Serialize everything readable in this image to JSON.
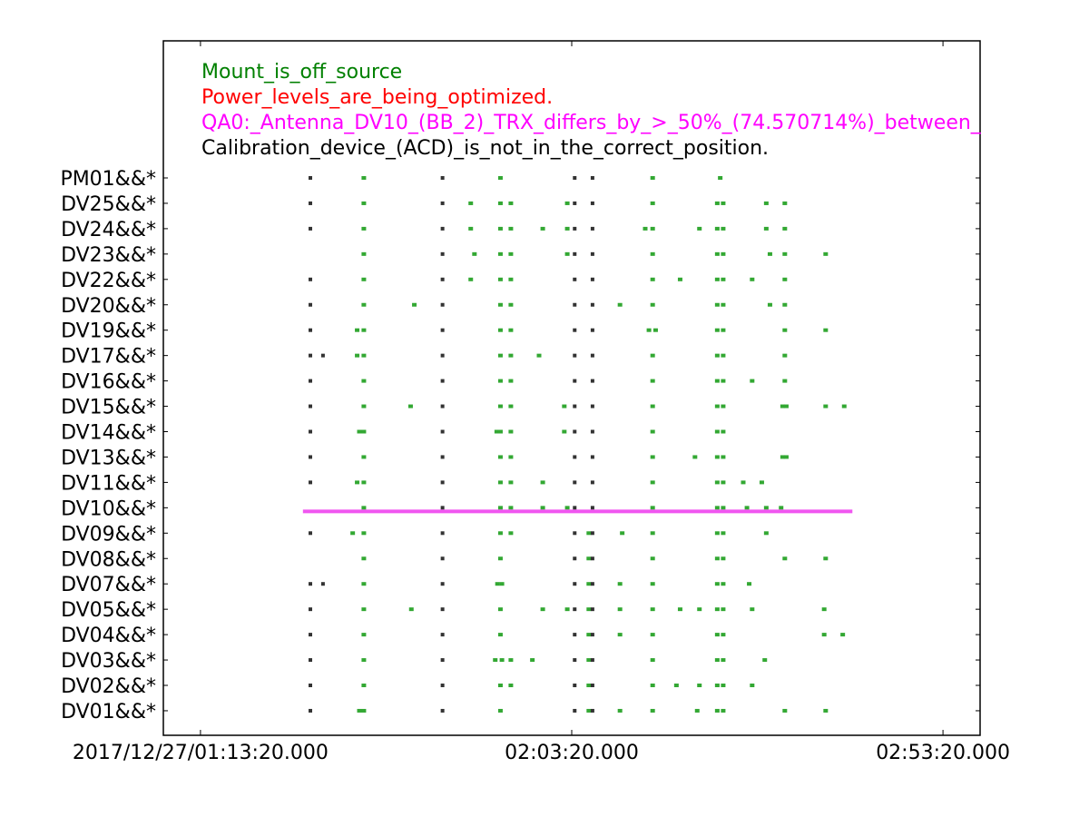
{
  "chart_data": {
    "type": "scatter",
    "title": "",
    "xlabel": "",
    "ylabel": "",
    "x_ticks": [
      "2017/12/27/01:13:20.000",
      "02:03:20.000",
      "02:53:20.000"
    ],
    "x_tick_minutes": [
      0,
      50,
      100
    ],
    "x_range_minutes": [
      -5,
      105
    ],
    "legend": [
      {
        "text": "Mount_is_off_source",
        "color": "#008000"
      },
      {
        "text": "Power_levels_are_being_optimized.",
        "color": "#ff0000"
      },
      {
        "text": "QA0:_Antenna_DV10_(BB_2)_TRX_differs_by_>_50%_(74.570714%)_between_",
        "color": "#ff00ff"
      },
      {
        "text": "Calibration_device_(ACD)_is_not_in_the_correct_position.",
        "color": "#000000"
      }
    ],
    "antennas": [
      "PM01&&*",
      "DV25&&*",
      "DV24&&*",
      "DV23&&*",
      "DV22&&*",
      "DV20&&*",
      "DV19&&*",
      "DV17&&*",
      "DV16&&*",
      "DV15&&*",
      "DV14&&*",
      "DV13&&*",
      "DV11&&*",
      "DV10&&*",
      "DV09&&*",
      "DV08&&*",
      "DV07&&*",
      "DV05&&*",
      "DV04&&*",
      "DV03&&*",
      "DV02&&*",
      "DV01&&*"
    ],
    "black_flags_minutes": {
      "PM01&&*": [
        14.8,
        32.6,
        50.4,
        52.8
      ],
      "DV25&&*": [
        14.8,
        32.6,
        50.4,
        52.8
      ],
      "DV24&&*": [
        14.8,
        32.6,
        50.4,
        52.8
      ],
      "DV23&&*": [
        32.6,
        50.4,
        52.8
      ],
      "DV22&&*": [
        14.8,
        32.6,
        50.4,
        52.8
      ],
      "DV20&&*": [
        14.8,
        32.6,
        50.4,
        52.8
      ],
      "DV19&&*": [
        14.8,
        32.6,
        50.4,
        52.8
      ],
      "DV17&&*": [
        14.8,
        16.5,
        32.6,
        50.4,
        52.8
      ],
      "DV16&&*": [
        14.8,
        32.6,
        50.4,
        52.8
      ],
      "DV15&&*": [
        14.8,
        32.6,
        50.4,
        52.8
      ],
      "DV14&&*": [
        14.8,
        32.6,
        50.4,
        52.8
      ],
      "DV13&&*": [
        14.8,
        32.6,
        50.4,
        52.8
      ],
      "DV11&&*": [
        14.8,
        32.6,
        50.4,
        52.8
      ],
      "DV10&&*": [
        32.6,
        50.4,
        52.8
      ],
      "DV09&&*": [
        14.8,
        32.6,
        50.4,
        52.8
      ],
      "DV08&&*": [
        32.6,
        50.4,
        52.8
      ],
      "DV07&&*": [
        14.8,
        16.5,
        32.6,
        50.4,
        52.8
      ],
      "DV05&&*": [
        14.8,
        32.6,
        50.4,
        52.8
      ],
      "DV04&&*": [
        14.8,
        32.6,
        50.4,
        52.8
      ],
      "DV03&&*": [
        14.8,
        32.6,
        50.4,
        52.8
      ],
      "DV02&&*": [
        14.8,
        32.6,
        50.4,
        52.8
      ],
      "DV01&&*": [
        14.8,
        32.6,
        50.4,
        52.8
      ]
    },
    "green_flags_minutes": {
      "PM01&&*": [
        22.0,
        40.4,
        60.9,
        70.0
      ],
      "DV25&&*": [
        22.0,
        36.4,
        40.4,
        41.8,
        49.4,
        60.9,
        69.6,
        70.4,
        76.2,
        78.7
      ],
      "DV24&&*": [
        22.0,
        36.4,
        40.4,
        41.8,
        46.1,
        49.4,
        59.9,
        60.9,
        67.2,
        69.6,
        70.4,
        76.2,
        78.7
      ],
      "DV23&&*": [
        22.0,
        36.9,
        40.4,
        41.8,
        49.4,
        60.9,
        69.6,
        70.4,
        76.7,
        78.7,
        84.2
      ],
      "DV22&&*": [
        22.0,
        36.4,
        40.4,
        41.8,
        60.9,
        64.6,
        69.6,
        70.4,
        74.3,
        78.7
      ],
      "DV20&&*": [
        22.0,
        28.8,
        40.4,
        41.8,
        56.5,
        60.9,
        69.6,
        70.4,
        76.7,
        78.7
      ],
      "DV19&&*": [
        21.1,
        22.0,
        40.4,
        41.8,
        60.4,
        61.3,
        69.6,
        70.4,
        78.7,
        84.2
      ],
      "DV17&&*": [
        21.1,
        22.0,
        40.4,
        41.8,
        45.6,
        60.9,
        69.6,
        70.4,
        78.7
      ],
      "DV16&&*": [
        22.0,
        40.4,
        41.8,
        60.9,
        69.6,
        70.4,
        74.3,
        78.7
      ],
      "DV15&&*": [
        22.0,
        28.3,
        40.4,
        41.8,
        49.0,
        60.9,
        69.6,
        70.4,
        78.4,
        78.9,
        84.2,
        86.7
      ],
      "DV14&&*": [
        21.4,
        22.0,
        39.9,
        40.4,
        41.8,
        49.0,
        60.9,
        69.6,
        70.4
      ],
      "DV13&&*": [
        22.0,
        40.4,
        41.8,
        60.9,
        66.6,
        69.6,
        70.4,
        78.4,
        78.9
      ],
      "DV11&&*": [
        21.1,
        22.0,
        40.4,
        41.8,
        46.1,
        60.9,
        69.6,
        70.4,
        73.1,
        75.6
      ],
      "DV10&&*": [
        22.0,
        40.4,
        41.8,
        46.1,
        49.4,
        60.9,
        69.6,
        70.4,
        73.6,
        76.2,
        78.2
      ],
      "DV09&&*": [
        20.5,
        22.0,
        40.4,
        41.8,
        52.3,
        56.8,
        60.9,
        69.6,
        70.4,
        76.2
      ],
      "DV08&&*": [
        22.0,
        40.4,
        52.3,
        60.9,
        69.6,
        70.4,
        78.7,
        84.2
      ],
      "DV07&&*": [
        22.0,
        40.0,
        40.6,
        52.3,
        56.5,
        60.9,
        69.6,
        70.4,
        73.9
      ],
      "DV05&&*": [
        22.0,
        28.4,
        40.4,
        46.1,
        49.4,
        52.3,
        56.5,
        60.9,
        64.6,
        67.2,
        69.6,
        70.4,
        74.3,
        84.0
      ],
      "DV04&&*": [
        22.0,
        40.4,
        52.3,
        56.5,
        60.9,
        69.6,
        70.4,
        84.0,
        86.5
      ],
      "DV03&&*": [
        22.0,
        39.7,
        40.6,
        41.8,
        44.7,
        52.3,
        60.9,
        69.6,
        70.4,
        76.0
      ],
      "DV02&&*": [
        22.0,
        40.4,
        41.8,
        52.3,
        60.9,
        64.1,
        67.2,
        69.6,
        70.4,
        74.3
      ],
      "DV01&&*": [
        21.4,
        22.0,
        40.4,
        52.3,
        56.5,
        60.9,
        66.9,
        69.6,
        70.4,
        78.7,
        84.2
      ]
    },
    "magenta_band": {
      "antenna": "DV10&&*",
      "x_start_minutes": 13.8,
      "x_end_minutes": 87.8
    }
  }
}
